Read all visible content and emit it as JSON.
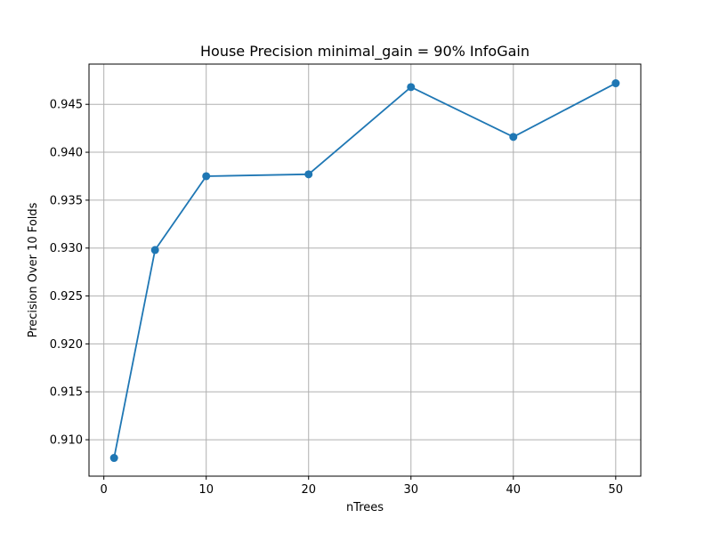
{
  "chart_data": {
    "type": "line",
    "title": "House Precision minimal_gain = 90% InfoGain",
    "xlabel": "nTrees",
    "ylabel": "Precision Over 10 Folds",
    "x": [
      1,
      5,
      10,
      20,
      30,
      40,
      50
    ],
    "series": [
      {
        "values": [
          0.9081,
          0.9298,
          0.9375,
          0.9377,
          0.9468,
          0.9416,
          0.9472
        ]
      }
    ],
    "xlim": [
      -1.45,
      52.45
    ],
    "ylim": [
      0.9062,
      0.9492
    ],
    "x_ticks": [
      0,
      10,
      20,
      30,
      40,
      50
    ],
    "y_ticks": [
      0.91,
      0.915,
      0.92,
      0.925,
      0.93,
      0.935,
      0.94,
      0.945
    ],
    "x_tick_labels": [
      "0",
      "10",
      "20",
      "30",
      "40",
      "50"
    ],
    "y_tick_labels": [
      "0.910",
      "0.915",
      "0.920",
      "0.925",
      "0.930",
      "0.935",
      "0.940",
      "0.945"
    ],
    "grid": true,
    "markers": true,
    "colors": {
      "series": "#1f77b4",
      "grid": "#b0b0b0",
      "axes": "#000000"
    }
  }
}
